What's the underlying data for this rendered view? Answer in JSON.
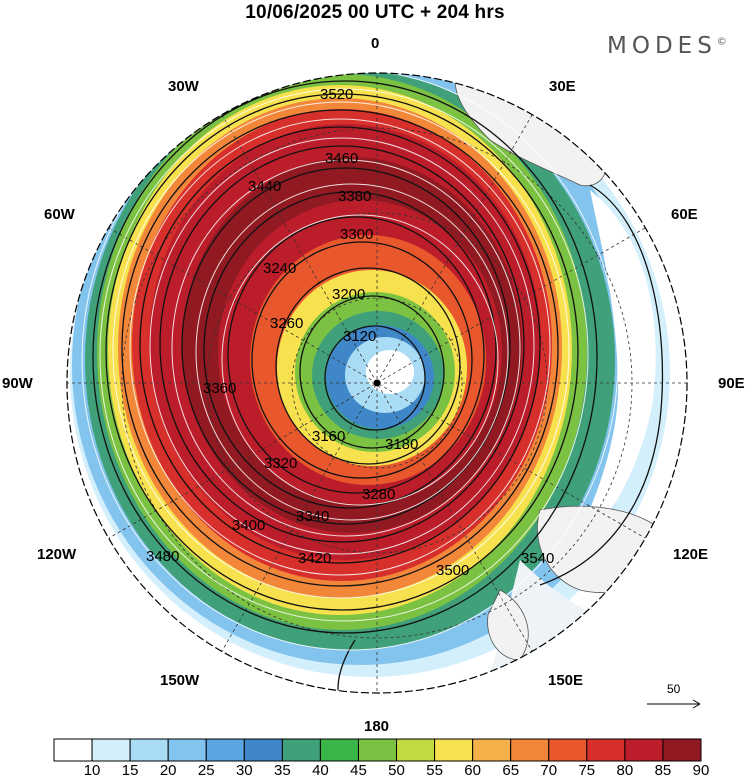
{
  "title": "10/06/2025  00 UTC  + 204 hrs",
  "logo": "MODES",
  "logo_mark": "©",
  "longitude_labels": {
    "lon_0": "0",
    "lon_30e": "30E",
    "lon_60e": "60E",
    "lon_90e": "90E",
    "lon_120e": "120E",
    "lon_150e": "150E",
    "lon_180": "180",
    "lon_150w": "150W",
    "lon_120w": "120W",
    "lon_90w": "90W",
    "lon_60w": "60W",
    "lon_30w": "30W"
  },
  "contour_labels": [
    "3520",
    "3460",
    "3440",
    "3380",
    "3300",
    "3200",
    "3120",
    "3160",
    "3180",
    "3280",
    "3340",
    "3400",
    "3420",
    "3480",
    "3500",
    "3540",
    "3360",
    "3240",
    "3260",
    "3320"
  ],
  "colorbar": {
    "ticks": [
      "10",
      "15",
      "20",
      "25",
      "30",
      "35",
      "40",
      "45",
      "50",
      "55",
      "60",
      "65",
      "70",
      "75",
      "80",
      "85",
      "90"
    ],
    "colors": [
      "#ffffff",
      "#d4effc",
      "#aadcf6",
      "#83c4ee",
      "#5aa6e0",
      "#3f87c8",
      "#3fa07a",
      "#39b54a",
      "#7cc242",
      "#c2d940",
      "#f7e14e",
      "#f5b04a",
      "#f2873a",
      "#e9582d",
      "#d72f2b",
      "#bb1e2a",
      "#911a22"
    ]
  },
  "wind_reference": "50"
}
